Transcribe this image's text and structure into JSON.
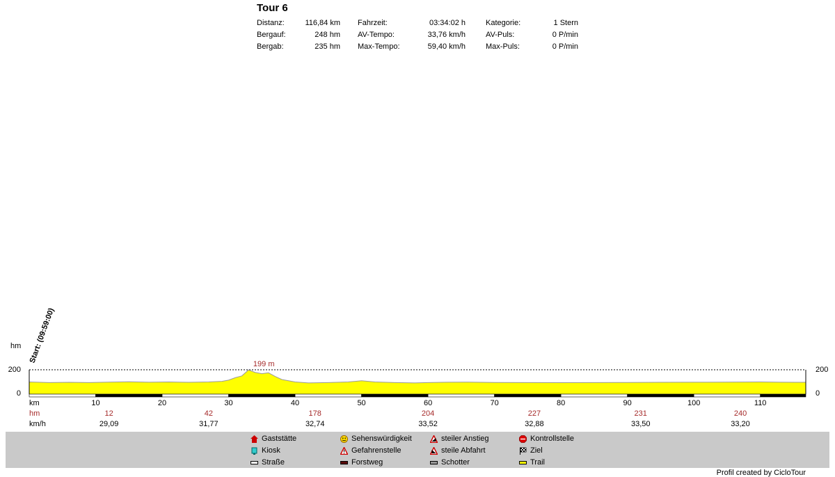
{
  "title": "Tour 6",
  "stats": [
    [
      {
        "label": "Distanz:",
        "value": "116,84 km"
      },
      {
        "label": "Bergauf:",
        "value": "248 hm"
      },
      {
        "label": "Bergab:",
        "value": "235 hm"
      }
    ],
    [
      {
        "label": "Fahrzeit:",
        "value": "03:34:02 h"
      },
      {
        "label": "AV-Tempo:",
        "value": "33,76 km/h"
      },
      {
        "label": "Max-Tempo:",
        "value": "59,40 km/h"
      }
    ],
    [
      {
        "label": "Kategorie:",
        "value": "1 Stern"
      },
      {
        "label": "AV-Puls:",
        "value": "0 P/min"
      },
      {
        "label": "Max-Puls:",
        "value": "0 P/min"
      }
    ]
  ],
  "chart_data": {
    "type": "area",
    "ylabel": "hm",
    "xlabel": "km",
    "xlim": [
      0,
      116.84
    ],
    "ylim": [
      0,
      200
    ],
    "ytick_labels": [
      "200",
      "0"
    ],
    "xtick_labels": [
      "10",
      "20",
      "30",
      "40",
      "50",
      "60",
      "70",
      "80",
      "90",
      "100",
      "110"
    ],
    "start_label": "Start: (09:59:00)",
    "peak_label": "199 m",
    "peak_km": 33,
    "fill_color": "#ffff00",
    "profile": {
      "x": [
        0,
        3,
        6,
        9,
        12,
        15,
        18,
        21,
        24,
        27,
        29,
        30,
        31,
        32,
        33,
        34,
        35,
        36,
        37,
        38,
        40,
        42,
        45,
        48,
        50,
        52,
        55,
        58,
        60,
        63,
        66,
        70,
        75,
        80,
        85,
        90,
        95,
        100,
        105,
        110,
        113,
        116.84
      ],
      "y": [
        100,
        95,
        97,
        95,
        99,
        101,
        98,
        100,
        97,
        100,
        105,
        115,
        135,
        150,
        199,
        178,
        168,
        175,
        145,
        120,
        100,
        92,
        95,
        100,
        110,
        100,
        95,
        92,
        95,
        98,
        99,
        96,
        95,
        94,
        95,
        96,
        97,
        98,
        99,
        100,
        98,
        97
      ]
    },
    "hm_label": "hm",
    "hm_values": [
      "12",
      "42",
      "178",
      "204",
      "227",
      "231",
      "240"
    ],
    "speed_label": "km/h",
    "speed_values": [
      "29,09",
      "31,77",
      "32,74",
      "33,52",
      "32,88",
      "33,50",
      "33,20"
    ],
    "summary_km": [
      12,
      27,
      43,
      60,
      76,
      92,
      107
    ]
  },
  "legend": [
    {
      "label": "Gaststätte",
      "icon": "house-icon"
    },
    {
      "label": "Kiosk",
      "icon": "kiosk-icon"
    },
    {
      "label": "Straße",
      "icon": "road-icon"
    },
    {
      "label": "Sehenswürdigkeit",
      "icon": "smiley-icon"
    },
    {
      "label": "Gefahrenstelle",
      "icon": "warning-icon"
    },
    {
      "label": "Forstweg",
      "icon": "forest-road-icon"
    },
    {
      "label": "steiler Anstieg",
      "icon": "steep-climb-icon"
    },
    {
      "label": "steile Abfahrt",
      "icon": "steep-descent-icon"
    },
    {
      "label": "Schotter",
      "icon": "gravel-icon"
    },
    {
      "label": "Kontrollstelle",
      "icon": "stop-icon"
    },
    {
      "label": "Ziel",
      "icon": "finish-flag-icon"
    },
    {
      "label": "Trail",
      "icon": "trail-icon"
    }
  ],
  "footer": "Profil created by CicloTour"
}
